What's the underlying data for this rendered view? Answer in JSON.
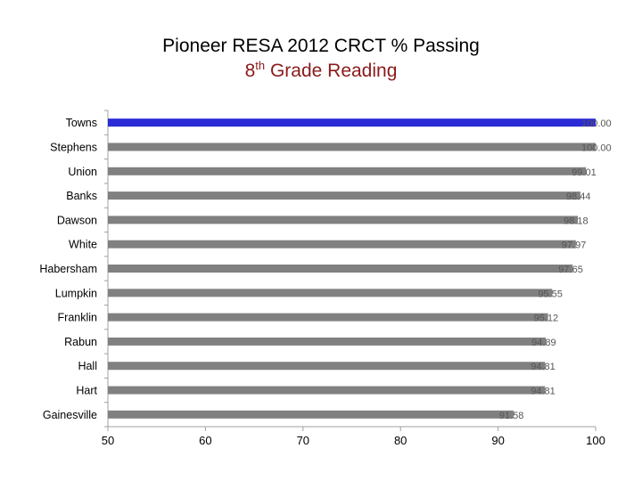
{
  "title": {
    "line1": "Pioneer RESA 2012 CRCT % Passing",
    "line2_prefix": "8",
    "line2_sup": "th",
    "line2_suffix": " Grade Reading"
  },
  "colors": {
    "highlight_bar": "#2a2ad6",
    "bar": "#808080",
    "axis": "#a0a0a0",
    "grid": "#e6e6e6",
    "title_line2": "#8b1a1a"
  },
  "chart_data": {
    "type": "bar",
    "orientation": "horizontal",
    "title": "Pioneer RESA 2012 CRCT % Passing 8th Grade Reading",
    "categories": [
      "Towns",
      "Stephens",
      "Union",
      "Banks",
      "Dawson",
      "White",
      "Habersham",
      "Lumpkin",
      "Franklin",
      "Rabun",
      "Hall",
      "Hart",
      "Gainesville"
    ],
    "values": [
      100.0,
      100.0,
      99.01,
      98.44,
      98.18,
      97.97,
      97.65,
      95.55,
      95.12,
      94.89,
      94.81,
      94.81,
      91.58
    ],
    "value_labels": [
      "100.00",
      "100.00",
      "99.01",
      "98.44",
      "98.18",
      "97.97",
      "97.65",
      "95.55",
      "95.12",
      "94.89",
      "94.81",
      "94.81",
      "91.58"
    ],
    "highlighted": "Towns",
    "xlim": [
      50,
      100
    ],
    "xticks": [
      50,
      60,
      70,
      80,
      90,
      100
    ],
    "xlabel": "",
    "ylabel": "",
    "grid": false,
    "legend": "none"
  }
}
